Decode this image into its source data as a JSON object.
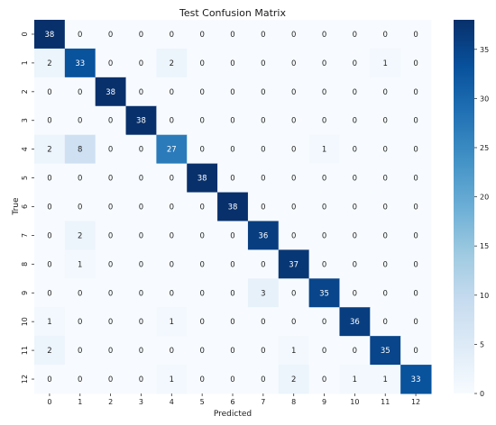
{
  "chart_data": {
    "type": "heatmap",
    "title": "Test Confusion Matrix",
    "xlabel": "Predicted",
    "ylabel": "True",
    "x_categories": [
      "0",
      "1",
      "2",
      "3",
      "4",
      "5",
      "6",
      "7",
      "8",
      "9",
      "10",
      "11",
      "12"
    ],
    "y_categories": [
      "0",
      "1",
      "2",
      "3",
      "4",
      "5",
      "6",
      "7",
      "8",
      "9",
      "10",
      "11",
      "12"
    ],
    "values": [
      [
        38,
        0,
        0,
        0,
        0,
        0,
        0,
        0,
        0,
        0,
        0,
        0,
        0
      ],
      [
        2,
        33,
        0,
        0,
        2,
        0,
        0,
        0,
        0,
        0,
        0,
        1,
        0
      ],
      [
        0,
        0,
        38,
        0,
        0,
        0,
        0,
        0,
        0,
        0,
        0,
        0,
        0
      ],
      [
        0,
        0,
        0,
        38,
        0,
        0,
        0,
        0,
        0,
        0,
        0,
        0,
        0
      ],
      [
        2,
        8,
        0,
        0,
        27,
        0,
        0,
        0,
        0,
        1,
        0,
        0,
        0
      ],
      [
        0,
        0,
        0,
        0,
        0,
        38,
        0,
        0,
        0,
        0,
        0,
        0,
        0
      ],
      [
        0,
        0,
        0,
        0,
        0,
        0,
        38,
        0,
        0,
        0,
        0,
        0,
        0
      ],
      [
        0,
        2,
        0,
        0,
        0,
        0,
        0,
        36,
        0,
        0,
        0,
        0,
        0
      ],
      [
        0,
        1,
        0,
        0,
        0,
        0,
        0,
        0,
        37,
        0,
        0,
        0,
        0
      ],
      [
        0,
        0,
        0,
        0,
        0,
        0,
        0,
        3,
        0,
        35,
        0,
        0,
        0
      ],
      [
        1,
        0,
        0,
        0,
        1,
        0,
        0,
        0,
        0,
        0,
        36,
        0,
        0
      ],
      [
        2,
        0,
        0,
        0,
        0,
        0,
        0,
        0,
        1,
        0,
        0,
        35,
        0
      ],
      [
        0,
        0,
        0,
        0,
        1,
        0,
        0,
        0,
        2,
        0,
        1,
        1,
        33
      ]
    ],
    "colorbar": {
      "min": 0,
      "max": 38,
      "ticks": [
        0,
        5,
        10,
        15,
        20,
        25,
        30,
        35
      ],
      "colormap": "Blues",
      "colors": [
        "#f7fbff",
        "#deebf7",
        "#c6dbef",
        "#9ecae1",
        "#6baed6",
        "#4292c6",
        "#2171b5",
        "#08519c",
        "#08306b"
      ]
    }
  }
}
